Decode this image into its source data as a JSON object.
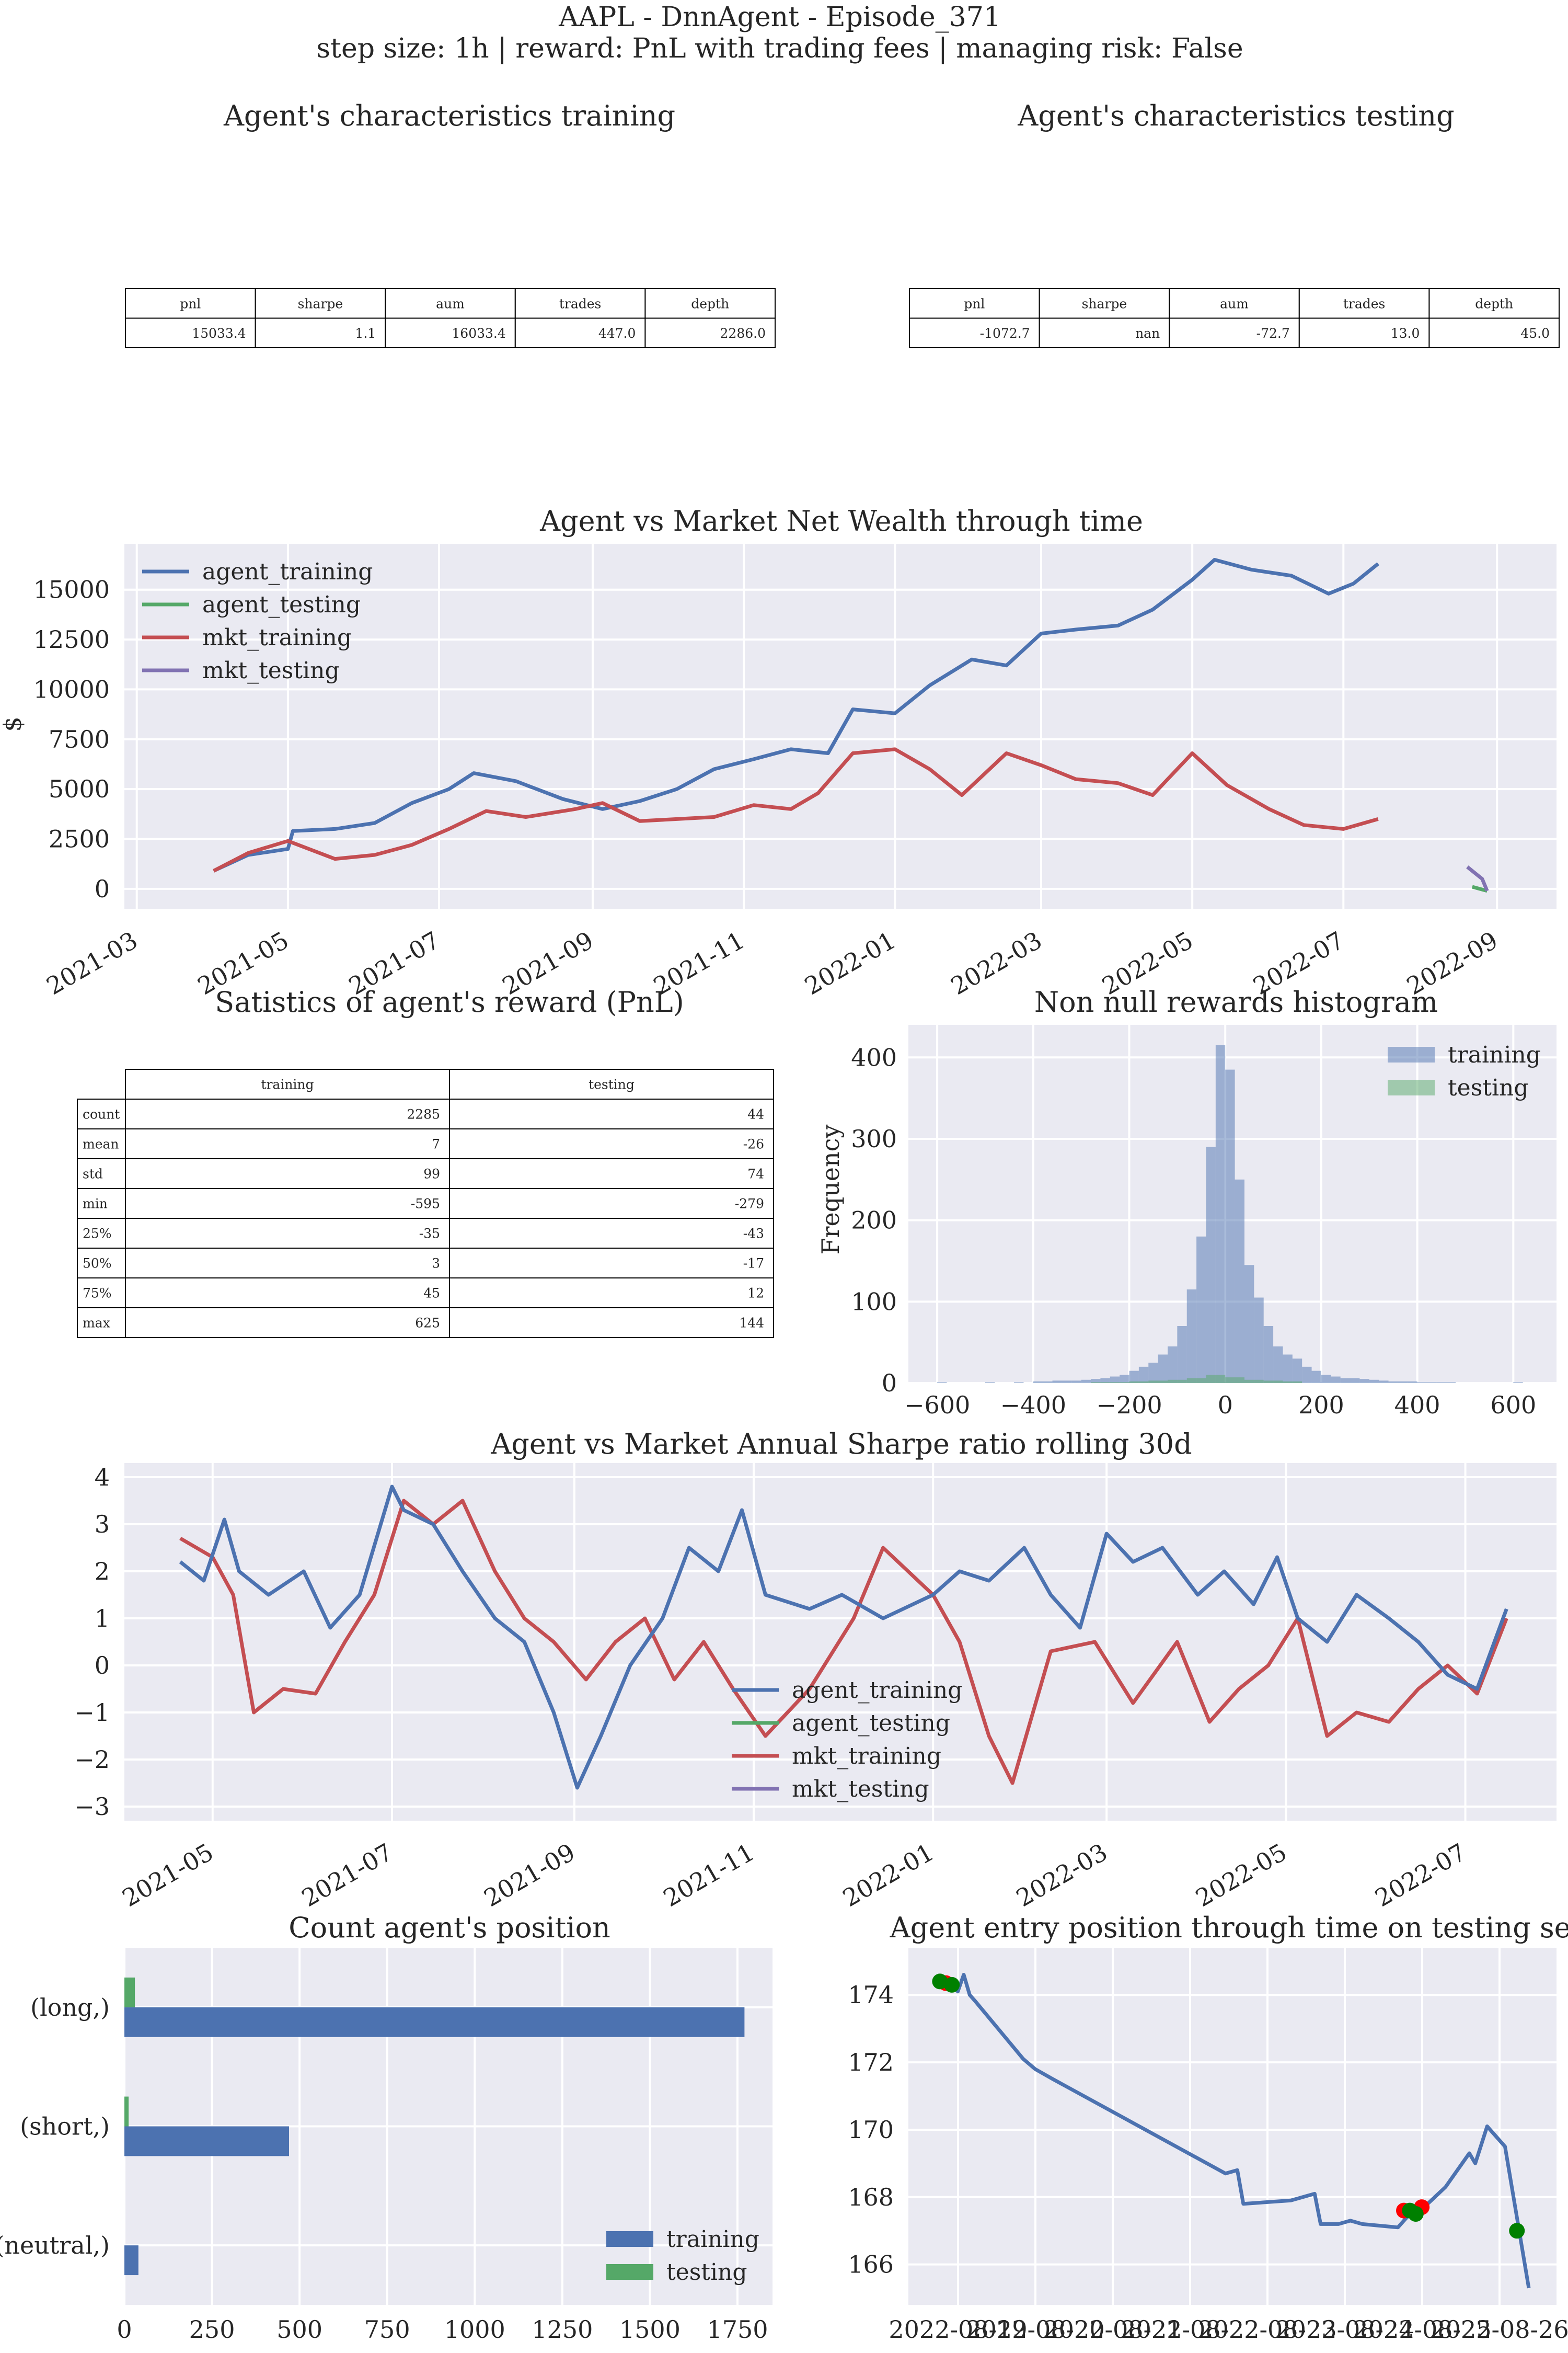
{
  "suptitle": {
    "line1": "AAPL - DnnAgent - Episode_371",
    "line2": "step size: 1h | reward: PnL with trading fees | managing risk: False"
  },
  "colors": {
    "agent_training": "#4c72b0",
    "agent_testing": "#55a868",
    "mkt_training": "#c44e52",
    "mkt_testing": "#8172b2",
    "axes_bg": "#eaeaf2",
    "entry_long": "#008000",
    "entry_short": "#ff0000"
  },
  "chart_data": [
    {
      "type": "table",
      "title": "Agent's characteristics training",
      "columns": [
        "pnl",
        "sharpe",
        "aum",
        "trades",
        "depth"
      ],
      "rows": [
        [
          "15033.4",
          "1.1",
          "16033.4",
          "447.0",
          "2286.0"
        ]
      ]
    },
    {
      "type": "table",
      "title": "Agent's characteristics testing",
      "columns": [
        "pnl",
        "sharpe",
        "aum",
        "trades",
        "depth"
      ],
      "rows": [
        [
          "-1072.7",
          "nan",
          "-72.7",
          "13.0",
          "45.0"
        ]
      ]
    },
    {
      "type": "line",
      "title": "Agent vs Market Net Wealth through time",
      "xlabel": "",
      "ylabel": "$",
      "xlim": [
        "2021-02-24",
        "2022-09-25"
      ],
      "ylim": [
        -1000,
        17300
      ],
      "xticks": [
        "2021-03",
        "2021-05",
        "2021-07",
        "2021-09",
        "2021-11",
        "2022-01",
        "2022-03",
        "2022-05",
        "2022-07",
        "2022-09"
      ],
      "yticks": [
        0,
        2500,
        5000,
        7500,
        10000,
        12500,
        15000
      ],
      "legend": "upper left",
      "series": [
        {
          "name": "agent_training",
          "x": [
            "2021-04-01",
            "2021-04-15",
            "2021-05-01",
            "2021-05-03",
            "2021-05-20",
            "2021-06-05",
            "2021-06-20",
            "2021-07-05",
            "2021-07-15",
            "2021-08-01",
            "2021-08-20",
            "2021-09-05",
            "2021-09-20",
            "2021-10-05",
            "2021-10-20",
            "2021-11-05",
            "2021-11-20",
            "2021-12-05",
            "2021-12-15",
            "2022-01-01",
            "2022-01-15",
            "2022-02-01",
            "2022-02-15",
            "2022-03-01",
            "2022-03-15",
            "2022-04-01",
            "2022-04-15",
            "2022-05-01",
            "2022-05-10",
            "2022-05-25",
            "2022-06-10",
            "2022-06-25",
            "2022-07-05",
            "2022-07-15"
          ],
          "values": [
            900,
            1700,
            2000,
            2900,
            3000,
            3300,
            4300,
            5000,
            5800,
            5400,
            4500,
            4000,
            4400,
            5000,
            6000,
            6500,
            7000,
            6800,
            9000,
            8800,
            10200,
            11500,
            11200,
            12800,
            13000,
            13200,
            14000,
            15500,
            16500,
            16000,
            15700,
            14800,
            15300,
            16300
          ]
        },
        {
          "name": "agent_testing",
          "x": [
            "2022-08-22",
            "2022-08-28"
          ],
          "values": [
            100,
            -100
          ]
        },
        {
          "name": "mkt_training",
          "x": [
            "2021-04-01",
            "2021-04-15",
            "2021-05-01",
            "2021-05-20",
            "2021-06-05",
            "2021-06-20",
            "2021-07-05",
            "2021-07-20",
            "2021-08-05",
            "2021-08-25",
            "2021-09-05",
            "2021-09-20",
            "2021-10-05",
            "2021-10-20",
            "2021-11-05",
            "2021-11-20",
            "2021-12-01",
            "2021-12-15",
            "2022-01-01",
            "2022-01-15",
            "2022-01-28",
            "2022-02-15",
            "2022-03-01",
            "2022-03-15",
            "2022-04-01",
            "2022-04-15",
            "2022-05-01",
            "2022-05-15",
            "2022-06-01",
            "2022-06-15",
            "2022-07-01",
            "2022-07-15"
          ],
          "values": [
            900,
            1800,
            2400,
            1500,
            1700,
            2200,
            3000,
            3900,
            3600,
            4000,
            4300,
            3400,
            3500,
            3600,
            4200,
            4000,
            4800,
            6800,
            7000,
            6000,
            4700,
            6800,
            6200,
            5500,
            5300,
            4700,
            6800,
            5200,
            4000,
            3200,
            3000,
            3500
          ]
        },
        {
          "name": "mkt_testing",
          "x": [
            "2022-08-20",
            "2022-08-24",
            "2022-08-26",
            "2022-08-28"
          ],
          "values": [
            1100,
            700,
            500,
            -100
          ]
        }
      ]
    },
    {
      "type": "table",
      "title": "Satistics of agent's reward (PnL)",
      "columns": [
        "training",
        "testing"
      ],
      "row_labels": [
        "count",
        "mean",
        "std",
        "min",
        "25%",
        "50%",
        "75%",
        "max"
      ],
      "rows": [
        [
          "2285",
          "44"
        ],
        [
          "7",
          "-26"
        ],
        [
          "99",
          "74"
        ],
        [
          "-595",
          "-279"
        ],
        [
          "-35",
          "-43"
        ],
        [
          "3",
          "-17"
        ],
        [
          "45",
          "12"
        ],
        [
          "625",
          "144"
        ]
      ]
    },
    {
      "type": "bar",
      "title": "Non null rewards histogram",
      "xlabel": "",
      "ylabel": "Frequency",
      "xlim": [
        -660,
        690
      ],
      "ylim": [
        0,
        440
      ],
      "xticks": [
        -600,
        -400,
        -200,
        0,
        200,
        400,
        600
      ],
      "yticks": [
        0,
        100,
        200,
        300,
        400
      ],
      "legend": "upper right",
      "series": [
        {
          "name": "training",
          "bin_edges": [
            -600,
            -580,
            -560,
            -540,
            -520,
            -500,
            -480,
            -460,
            -440,
            -420,
            -400,
            -380,
            -360,
            -340,
            -320,
            -300,
            -280,
            -260,
            -240,
            -220,
            -200,
            -180,
            -160,
            -140,
            -120,
            -100,
            -80,
            -60,
            -40,
            -20,
            0,
            20,
            40,
            60,
            80,
            100,
            120,
            140,
            160,
            180,
            200,
            220,
            240,
            260,
            280,
            300,
            320,
            340,
            360,
            380,
            400,
            420,
            440,
            460,
            480,
            500,
            520,
            540,
            560,
            580,
            600,
            620
          ],
          "values": [
            1,
            0,
            0,
            0,
            0,
            1,
            0,
            0,
            1,
            0,
            2,
            2,
            3,
            3,
            3,
            4,
            5,
            6,
            8,
            10,
            15,
            20,
            25,
            35,
            45,
            70,
            115,
            180,
            290,
            415,
            385,
            250,
            145,
            105,
            70,
            45,
            35,
            30,
            20,
            15,
            10,
            8,
            6,
            6,
            5,
            4,
            3,
            2,
            2,
            2,
            1,
            1,
            1,
            1,
            0,
            0,
            0,
            0,
            0,
            0,
            1
          ]
        },
        {
          "name": "testing",
          "bin_edges": [
            -280,
            -240,
            -200,
            -160,
            -120,
            -80,
            -40,
            0,
            40,
            80,
            120,
            160
          ],
          "values": [
            1,
            1,
            2,
            3,
            4,
            6,
            10,
            7,
            4,
            3,
            2
          ]
        }
      ]
    },
    {
      "type": "line",
      "title": "Agent vs Market Annual Sharpe ratio rolling 30d",
      "xlabel": "",
      "ylabel": "",
      "xlim": [
        "2021-04-01",
        "2022-08-01"
      ],
      "ylim": [
        -3.3,
        4.3
      ],
      "xticks": [
        "2021-05",
        "2021-07",
        "2021-09",
        "2021-11",
        "2022-01",
        "2022-03",
        "2022-05",
        "2022-07"
      ],
      "yticks": [
        -3,
        -2,
        -1,
        0,
        1,
        2,
        3,
        4
      ],
      "legend": "lower center",
      "series": [
        {
          "name": "agent_training",
          "x": [
            "2021-04-20",
            "2021-04-28",
            "2021-05-05",
            "2021-05-10",
            "2021-05-20",
            "2021-06-01",
            "2021-06-10",
            "2021-06-20",
            "2021-07-01",
            "2021-07-05",
            "2021-07-15",
            "2021-07-25",
            "2021-08-05",
            "2021-08-15",
            "2021-08-25",
            "2021-09-02",
            "2021-09-10",
            "2021-09-20",
            "2021-10-01",
            "2021-10-10",
            "2021-10-20",
            "2021-10-28",
            "2021-11-05",
            "2021-11-20",
            "2021-12-01",
            "2021-12-15",
            "2022-01-01",
            "2022-01-10",
            "2022-01-20",
            "2022-02-01",
            "2022-02-10",
            "2022-02-20",
            "2022-03-01",
            "2022-03-10",
            "2022-03-20",
            "2022-04-01",
            "2022-04-10",
            "2022-04-20",
            "2022-04-28",
            "2022-05-05",
            "2022-05-15",
            "2022-05-25",
            "2022-06-05",
            "2022-06-15",
            "2022-06-25",
            "2022-07-05",
            "2022-07-15"
          ],
          "values": [
            2.2,
            1.8,
            3.1,
            2.0,
            1.5,
            2.0,
            0.8,
            1.5,
            3.8,
            3.3,
            3.0,
            2.0,
            1.0,
            0.5,
            -1.0,
            -2.6,
            -1.5,
            0.0,
            1.0,
            2.5,
            2.0,
            3.3,
            1.5,
            1.2,
            1.5,
            1.0,
            1.5,
            2.0,
            1.8,
            2.5,
            1.5,
            0.8,
            2.8,
            2.2,
            2.5,
            1.5,
            2.0,
            1.3,
            2.3,
            1.0,
            0.5,
            1.5,
            1.0,
            0.5,
            -0.2,
            -0.5,
            1.2
          ]
        },
        {
          "name": "agent_testing",
          "x": [],
          "values": []
        },
        {
          "name": "mkt_training",
          "x": [
            "2021-04-20",
            "2021-05-01",
            "2021-05-08",
            "2021-05-15",
            "2021-05-25",
            "2021-06-05",
            "2021-06-15",
            "2021-06-25",
            "2021-07-05",
            "2021-07-15",
            "2021-07-25",
            "2021-08-05",
            "2021-08-15",
            "2021-08-25",
            "2021-09-05",
            "2021-09-15",
            "2021-09-25",
            "2021-10-05",
            "2021-10-15",
            "2021-10-25",
            "2021-11-05",
            "2021-11-20",
            "2021-12-05",
            "2021-12-15",
            "2022-01-01",
            "2022-01-10",
            "2022-01-20",
            "2022-01-28",
            "2022-02-10",
            "2022-02-25",
            "2022-03-10",
            "2022-03-25",
            "2022-04-05",
            "2022-04-15",
            "2022-04-25",
            "2022-05-05",
            "2022-05-15",
            "2022-05-25",
            "2022-06-05",
            "2022-06-15",
            "2022-06-25",
            "2022-07-05",
            "2022-07-15"
          ],
          "values": [
            2.7,
            2.3,
            1.5,
            -1.0,
            -0.5,
            -0.6,
            0.5,
            1.5,
            3.5,
            3.0,
            3.5,
            2.0,
            1.0,
            0.5,
            -0.3,
            0.5,
            1.0,
            -0.3,
            0.5,
            -0.5,
            -1.5,
            -0.5,
            1.0,
            2.5,
            1.5,
            0.5,
            -1.5,
            -2.5,
            0.3,
            0.5,
            -0.8,
            0.5,
            -1.2,
            -0.5,
            0.0,
            1.0,
            -1.5,
            -1.0,
            -1.2,
            -0.5,
            0.0,
            -0.6,
            1.0
          ]
        },
        {
          "name": "mkt_testing",
          "x": [],
          "values": []
        }
      ]
    },
    {
      "type": "bar",
      "title": "Count agent's position",
      "orientation": "horizontal",
      "categories": [
        "(long,)",
        "(short,)",
        "(neutral,)"
      ],
      "xlim": [
        0,
        1850
      ],
      "xticks": [
        0,
        250,
        500,
        750,
        1000,
        1250,
        1500,
        1750
      ],
      "legend": "lower right",
      "series": [
        {
          "name": "training",
          "values": [
            1770,
            470,
            40
          ]
        },
        {
          "name": "testing",
          "values": [
            30,
            12,
            0
          ]
        }
      ]
    },
    {
      "type": "line",
      "title": "Agent entry position through time on testing set",
      "xlabel": "",
      "ylabel": "",
      "xlim": [
        0,
        1
      ],
      "ylim": [
        164.8,
        175.4
      ],
      "x_tick_labels": [
        "2022-08-19",
        "2022-08-20",
        "2022-08-21",
        "2022-08-22",
        "2022-08-23",
        "2022-08-24",
        "2022-08-25",
        "2022-08-26"
      ],
      "yticks": [
        166,
        168,
        170,
        172,
        174
      ],
      "series": [
        {
          "name": "price",
          "t": [
            0.0,
            0.03,
            0.04,
            0.05,
            0.06,
            0.07,
            0.15,
            0.17,
            0.2,
            0.49,
            0.51,
            0.52,
            0.6,
            0.64,
            0.65,
            0.68,
            0.7,
            0.72,
            0.78,
            0.8,
            0.81,
            0.83,
            0.86,
            0.9,
            0.91,
            0.93,
            0.96,
            1.0
          ],
          "values": [
            174.4,
            174.4,
            174.1,
            174.6,
            174.0,
            173.8,
            172.1,
            171.8,
            171.5,
            168.7,
            168.8,
            167.8,
            167.9,
            168.1,
            167.2,
            167.2,
            167.3,
            167.2,
            167.1,
            167.5,
            167.4,
            167.8,
            168.3,
            169.3,
            169.0,
            170.1,
            169.5,
            165.3
          ]
        },
        {
          "name": "long",
          "t": [
            0.01,
            0.03,
            0.8,
            0.81,
            0.98
          ],
          "values": [
            174.4,
            174.3,
            167.6,
            167.5,
            167.0
          ]
        },
        {
          "name": "short",
          "t": [
            0.02,
            0.79,
            0.82
          ],
          "values": [
            174.35,
            167.6,
            167.7
          ]
        }
      ]
    }
  ]
}
